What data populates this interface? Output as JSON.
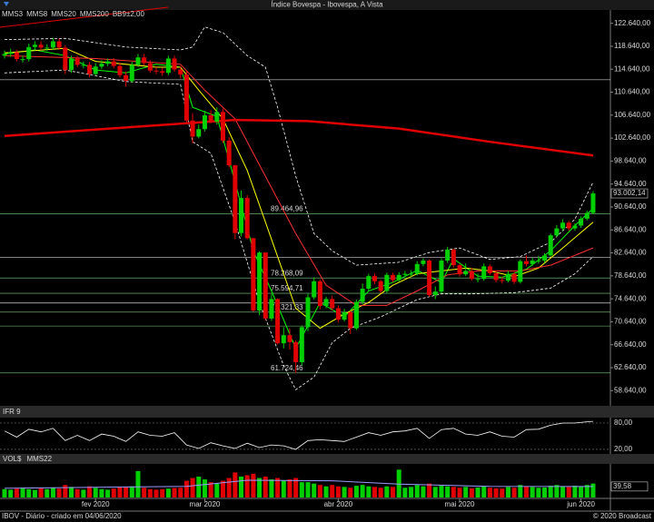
{
  "title": "Índice Bovespa - Ibovespa, A Vista",
  "footer": {
    "left": "IBOV - Diário - criado em 04/06/2020",
    "right": "© 2020 Broadcast"
  },
  "chart_data": [
    {
      "type": "candlestick",
      "xlim": [
        -0.75,
        99.85
      ],
      "ylim": [
        56000,
        124800
      ],
      "yticks": [
        {
          "value": 122640,
          "label": "122.640,00"
        },
        {
          "value": 118640,
          "label": "118.640,00"
        },
        {
          "value": 114640,
          "label": "114.640,00"
        },
        {
          "value": 110640,
          "label": "110.640,00"
        },
        {
          "value": 106640,
          "label": "106.640,00"
        },
        {
          "value": 102640,
          "label": "102.640,00"
        },
        {
          "value": 98640,
          "label": "98.640,00"
        },
        {
          "value": 94640,
          "label": "94.640,00"
        },
        {
          "value": 90640,
          "label": "90.640,00"
        },
        {
          "value": 86640,
          "label": "86.640,00"
        },
        {
          "value": 82640,
          "label": "82.640,00"
        },
        {
          "value": 78640,
          "label": "78.640,00"
        },
        {
          "value": 74640,
          "label": "74.640,00"
        },
        {
          "value": 70640,
          "label": "70.640,00"
        },
        {
          "value": 66640,
          "label": "66.640,00"
        },
        {
          "value": 62640,
          "label": "62.640,00"
        },
        {
          "value": 58640,
          "label": "58.640,00"
        }
      ],
      "up_color": "#00d000",
      "down_color": "#e00000",
      "open": [
        117000,
        117300,
        117600,
        116400,
        116400,
        118500,
        118900,
        118400,
        118400,
        119500,
        118400,
        114500,
        116500,
        115400,
        115400,
        113800,
        115100,
        115600,
        116000,
        115200,
        113600,
        112600,
        115400,
        116700,
        115700,
        114400,
        114300,
        114000,
        116500,
        114600,
        113700,
        105700,
        102900,
        104200,
        106600,
        105500,
        107200,
        102200,
        97900,
        86100,
        92200,
        85200,
        72600,
        82700,
        71200,
        74600,
        66900,
        68300,
        67100,
        63600,
        69700,
        74900,
        77700,
        73400,
        74600,
        73000,
        71000,
        72300,
        69500,
        74100,
        76400,
        78600,
        77700,
        76000,
        78800,
        77900,
        78800,
        79000,
        79000,
        80700,
        81300,
        75300,
        75900,
        81300,
        83200,
        80500,
        78900,
        79500,
        78100,
        78100,
        80300,
        79100,
        77900,
        77800,
        79000,
        77600,
        81200,
        80700,
        81300,
        81300,
        82200,
        85700,
        86900,
        87900,
        86900,
        87400,
        88600,
        89600
      ],
      "high": [
        117900,
        118200,
        118000,
        117000,
        119100,
        119500,
        119500,
        119000,
        120100,
        120000,
        118800,
        117000,
        117000,
        116000,
        115900,
        115700,
        116200,
        116500,
        116600,
        115800,
        114200,
        115900,
        117300,
        117300,
        116200,
        115000,
        114900,
        117000,
        117000,
        115200,
        114300,
        107000,
        105000,
        107400,
        107500,
        108000,
        107800,
        102800,
        98000,
        93500,
        92700,
        85300,
        82900,
        82700,
        75500,
        74700,
        69700,
        69500,
        67400,
        70000,
        75500,
        78400,
        78000,
        75000,
        75200,
        73500,
        72900,
        72600,
        74500,
        77300,
        79000,
        79100,
        78000,
        79200,
        79200,
        79300,
        79500,
        79600,
        81200,
        81700,
        81500,
        76800,
        81700,
        83700,
        83400,
        80800,
        80800,
        80000,
        79000,
        80800,
        80600,
        79600,
        78500,
        79500,
        79300,
        81500,
        82200,
        81800,
        82100,
        82600,
        86000,
        87500,
        88500,
        88200,
        87800,
        89000,
        90000,
        93400
      ],
      "low": [
        116500,
        116800,
        116000,
        115800,
        116000,
        117900,
        117900,
        117800,
        118000,
        118000,
        113800,
        114000,
        115000,
        114800,
        113200,
        113500,
        114700,
        115200,
        114800,
        113200,
        111600,
        112300,
        115000,
        115300,
        114000,
        113800,
        113500,
        113600,
        114200,
        113000,
        105400,
        101700,
        102600,
        103800,
        105200,
        105000,
        101800,
        97500,
        85000,
        85500,
        85000,
        72400,
        71800,
        70900,
        70800,
        66700,
        66000,
        65800,
        61700,
        63100,
        69000,
        74500,
        72800,
        73000,
        72600,
        70500,
        70700,
        68500,
        69200,
        73700,
        76000,
        77200,
        75600,
        75700,
        77500,
        77600,
        78400,
        78500,
        78700,
        80300,
        75000,
        74600,
        75600,
        80900,
        80100,
        78500,
        78600,
        77800,
        77500,
        77800,
        78800,
        77500,
        77300,
        77500,
        77200,
        77300,
        80300,
        80400,
        80800,
        80900,
        82000,
        85400,
        86500,
        86500,
        86500,
        87000,
        88300,
        89400
      ],
      "close": [
        117300,
        117600,
        116400,
        116400,
        118500,
        118900,
        118400,
        118400,
        119500,
        118400,
        114500,
        116500,
        115400,
        115400,
        113800,
        115100,
        115600,
        116000,
        115200,
        113600,
        112600,
        115400,
        116700,
        115700,
        114400,
        114300,
        114000,
        116500,
        114600,
        113700,
        105700,
        102900,
        104200,
        106600,
        105500,
        107200,
        102200,
        97900,
        86100,
        92200,
        85200,
        72600,
        82700,
        71200,
        74600,
        66900,
        68300,
        67100,
        63600,
        69700,
        74900,
        77700,
        73400,
        74600,
        73000,
        71000,
        72300,
        69500,
        74100,
        76400,
        78600,
        77700,
        76000,
        78800,
        77900,
        78800,
        79000,
        79000,
        80700,
        81300,
        75300,
        75900,
        81300,
        83200,
        80500,
        78900,
        79500,
        78100,
        78100,
        80300,
        79100,
        77900,
        77800,
        79000,
        77600,
        81200,
        80700,
        81300,
        81300,
        82200,
        85700,
        86900,
        87900,
        86900,
        87400,
        88600,
        89600,
        93000
      ],
      "overlays": [
        {
          "name": "MMS3",
          "color": "#00ff00",
          "width": 1,
          "x": [
            0,
            5,
            10,
            15,
            20,
            25,
            29,
            31,
            35,
            38,
            41,
            44,
            48,
            52,
            56,
            60,
            64,
            68,
            72,
            74,
            78,
            82,
            86,
            90,
            94,
            97
          ],
          "values": [
            117300,
            118000,
            117000,
            114500,
            114000,
            115500,
            115000,
            108000,
            106400,
            95000,
            83000,
            76000,
            66000,
            74000,
            71500,
            76000,
            77500,
            79600,
            77500,
            81600,
            78600,
            78400,
            79800,
            83000,
            87400,
            90400
          ]
        },
        {
          "name": "MMS8",
          "color": "#ffff00",
          "width": 1,
          "x": [
            0,
            10,
            15,
            25,
            29,
            32,
            36,
            40,
            44,
            48,
            52,
            56,
            60,
            64,
            68,
            72,
            76,
            80,
            84,
            88,
            92,
            97
          ],
          "values": [
            117500,
            118300,
            116000,
            115000,
            115000,
            111000,
            106000,
            97000,
            85000,
            73000,
            69500,
            72000,
            74000,
            77000,
            79000,
            79500,
            80000,
            79500,
            78500,
            80000,
            83500,
            88000
          ]
        },
        {
          "name": "MMS20",
          "color": "#ff3030",
          "width": 1,
          "x": [
            0,
            15,
            29,
            33,
            38,
            43,
            48,
            53,
            58,
            63,
            68,
            73,
            78,
            85,
            90,
            97
          ],
          "values": [
            117000,
            116500,
            115500,
            111000,
            106000,
            96000,
            86000,
            77000,
            73500,
            73500,
            76000,
            78800,
            79500,
            79500,
            80500,
            83500
          ]
        },
        {
          "name": "MMS200",
          "color": "#e00000",
          "width": 2.5,
          "x": [
            0,
            20,
            38,
            50,
            65,
            80,
            97
          ],
          "values": [
            103000,
            104500,
            105800,
            105600,
            104300,
            102000,
            99600
          ]
        }
      ],
      "bands": {
        "name": "BB9±2,00",
        "color": "#ffffff",
        "upper": {
          "x": [
            0,
            10,
            20,
            29,
            31,
            33,
            36,
            40,
            43,
            45,
            48,
            51,
            54,
            58,
            65,
            70,
            75,
            80,
            85,
            90,
            94,
            97
          ],
          "values": [
            119800,
            120000,
            118500,
            118000,
            118500,
            122000,
            121000,
            117000,
            115000,
            108000,
            96000,
            86000,
            83000,
            80500,
            81000,
            82700,
            83500,
            81500,
            82000,
            84500,
            88500,
            95000
          ]
        },
        "lower": {
          "x": [
            0,
            10,
            20,
            29,
            31,
            34,
            38,
            42,
            46,
            48,
            51,
            54,
            57,
            62,
            68,
            72,
            77,
            84,
            90,
            94,
            97
          ],
          "values": [
            114000,
            114500,
            112500,
            112000,
            102000,
            100000,
            88000,
            74000,
            63000,
            58800,
            61000,
            67000,
            69500,
            71500,
            74500,
            75500,
            75500,
            75700,
            76500,
            79000,
            82000
          ]
        }
      },
      "levels": [
        {
          "value": 89464.96,
          "label": "89.464,96"
        },
        {
          "value": 78268.09,
          "label": "78.268,09"
        },
        {
          "value": 75594.71,
          "label": "75.594,71"
        },
        {
          "value": 72321.33,
          "label": "72.321,33"
        },
        {
          "value": 61724.46,
          "label": "61.724,46"
        }
      ],
      "level_color": "#7fd07f",
      "lines": [
        {
          "value": 112800,
          "color": "#ffffff"
        },
        {
          "value": 81900,
          "color": "#ffffff"
        },
        {
          "value": 73900,
          "color": "#ffffff"
        },
        {
          "value": 69900,
          "color": "#7fd07f"
        }
      ],
      "last": {
        "value": 93002.14,
        "label": "93.002,14"
      }
    },
    {
      "type": "line",
      "name": "IFR 9",
      "color": "#ffffff",
      "xlim": [
        -0.75,
        99.85
      ],
      "ylim": [
        9.6,
        109
      ],
      "yticks": [
        {
          "value": 80,
          "label": "80,00"
        },
        {
          "value": 20,
          "label": "20,00"
        }
      ],
      "x": [
        0,
        2,
        4,
        6,
        8,
        10,
        12,
        14,
        16,
        18,
        20,
        22,
        24,
        26,
        28,
        30,
        32,
        34,
        36,
        38,
        40,
        42,
        44,
        46,
        48,
        50,
        52,
        54,
        56,
        58,
        60,
        62,
        64,
        66,
        68,
        70,
        72,
        74,
        76,
        78,
        80,
        82,
        84,
        86,
        88,
        90,
        92,
        94,
        96,
        97
      ],
      "values": [
        62,
        48,
        66,
        60,
        68,
        40,
        52,
        40,
        55,
        50,
        38,
        60,
        52,
        50,
        58,
        30,
        22,
        35,
        28,
        22,
        34,
        24,
        30,
        28,
        20,
        40,
        42,
        40,
        38,
        48,
        58,
        52,
        60,
        62,
        68,
        45,
        65,
        68,
        55,
        52,
        60,
        50,
        48,
        65,
        66,
        75,
        80,
        80,
        83,
        84
      ]
    },
    {
      "type": "bar",
      "name": "VOL$",
      "xlim": [
        -0.75,
        99.85
      ],
      "ylim": [
        0,
        150
      ],
      "values": [
        30,
        28,
        32,
        35,
        30,
        27,
        33,
        30,
        35,
        32,
        45,
        38,
        30,
        28,
        40,
        35,
        30,
        28,
        32,
        36,
        38,
        40,
        95,
        35,
        30,
        28,
        30,
        32,
        34,
        35,
        60,
        70,
        75,
        65,
        55,
        50,
        60,
        70,
        90,
        75,
        80,
        85,
        70,
        75,
        65,
        70,
        60,
        65,
        70,
        55,
        55,
        50,
        45,
        40,
        45,
        40,
        38,
        35,
        42,
        45,
        40,
        38,
        35,
        40,
        38,
        100,
        35,
        38,
        45,
        40,
        50,
        38,
        42,
        40,
        38,
        35,
        38,
        33,
        36,
        40,
        35,
        33,
        32,
        38,
        35,
        45,
        40,
        38,
        35,
        36,
        42,
        45,
        40,
        38,
        42,
        40,
        45,
        50
      ],
      "overlays": [
        {
          "name": "MMS22",
          "color": "#9a9aff",
          "width": 1,
          "x": [
            0,
            30,
            40,
            54,
            65,
            80,
            97
          ],
          "values": [
            33,
            40,
            62,
            60,
            48,
            40,
            39.58
          ]
        }
      ],
      "last": {
        "value": 39.58,
        "label": "39,58"
      },
      "xticks": [
        {
          "value": 15,
          "label": "fev 2020"
        },
        {
          "value": 33,
          "label": "mar 2020"
        },
        {
          "value": 55,
          "label": "abr 2020"
        },
        {
          "value": 75,
          "label": "mai 2020"
        },
        {
          "value": 95,
          "label": "jun 2020"
        }
      ]
    }
  ]
}
